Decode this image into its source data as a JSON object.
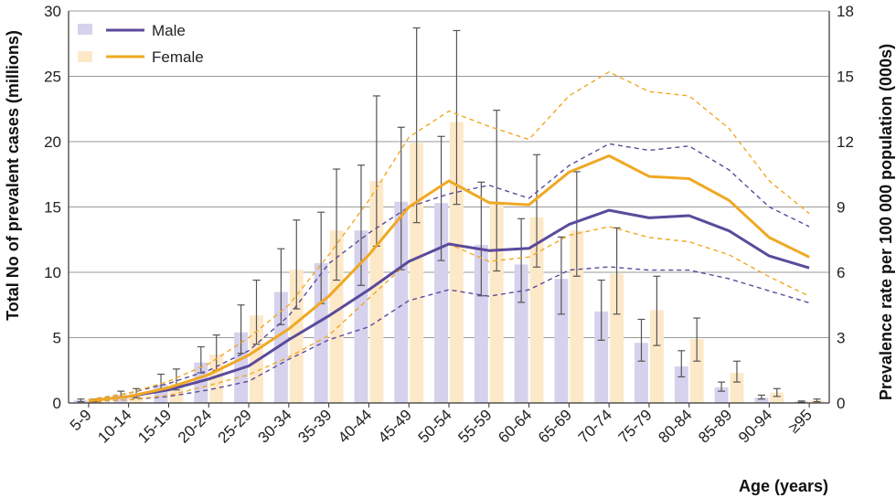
{
  "chart_data": {
    "type": "bar+line",
    "categories": [
      "5-9",
      "10-14",
      "15-19",
      "20-24",
      "25-29",
      "30-34",
      "35-39",
      "40-44",
      "45-49",
      "50-54",
      "55-59",
      "60-64",
      "65-69",
      "70-74",
      "75-79",
      "80-84",
      "85-89",
      "90-94",
      "≥95"
    ],
    "ylabel_left": "Total No of prevalent cases (millions)",
    "ylabel_right": "Prevalence rate per 100 000 population (000s)",
    "xlabel": "Age (years)",
    "ylim_left": [
      0,
      30
    ],
    "ylim_right": [
      0,
      18
    ],
    "yticks_left": [
      "0",
      "5",
      "10",
      "15",
      "20",
      "25",
      "30"
    ],
    "yticks_right": [
      "0",
      "3",
      "6",
      "9",
      "12",
      "15",
      "18"
    ],
    "grid": true,
    "legend": {
      "position": "top-left",
      "entries": [
        {
          "name": "Male",
          "color": "#5b4a9b"
        },
        {
          "name": "Female",
          "color": "#f0a823"
        }
      ]
    },
    "colors": {
      "male_bar": "#d6d1ec",
      "female_bar": "#fde9c8",
      "male_line": "#5b4a9b",
      "female_line": "#f0a823",
      "error_bar": "#555555"
    },
    "bars": {
      "male": {
        "values": [
          0.2,
          0.6,
          1.4,
          3.1,
          5.4,
          8.5,
          10.7,
          13.2,
          15.4,
          15.3,
          12.1,
          10.6,
          9.5,
          7.0,
          4.6,
          2.8,
          1.2,
          0.4,
          0.1
        ],
        "lower": [
          0.1,
          0.4,
          1.0,
          2.3,
          3.8,
          6.0,
          7.6,
          9.0,
          10.2,
          10.9,
          8.2,
          7.7,
          6.8,
          4.8,
          3.2,
          2.0,
          0.9,
          0.3,
          0.05
        ],
        "upper": [
          0.3,
          0.9,
          2.2,
          4.3,
          7.5,
          11.8,
          14.6,
          18.2,
          21.1,
          20.4,
          16.9,
          14.1,
          12.7,
          9.4,
          6.4,
          4.0,
          1.6,
          0.6,
          0.15
        ]
      },
      "female": {
        "values": [
          0.2,
          0.7,
          1.5,
          3.7,
          6.7,
          10.2,
          13.2,
          17.0,
          19.9,
          21.5,
          15.4,
          14.2,
          13.2,
          9.9,
          7.1,
          4.9,
          2.3,
          0.8,
          0.2
        ],
        "lower": [
          0.1,
          0.4,
          1.0,
          2.5,
          4.5,
          7.2,
          9.4,
          12.0,
          13.8,
          15.2,
          10.1,
          10.4,
          9.7,
          6.8,
          4.4,
          3.2,
          1.6,
          0.5,
          0.1
        ],
        "upper": [
          0.3,
          1.1,
          2.6,
          5.2,
          9.4,
          14.0,
          17.9,
          23.5,
          28.7,
          28.5,
          22.4,
          19.0,
          17.7,
          13.4,
          9.7,
          6.5,
          3.2,
          1.1,
          0.3
        ]
      }
    },
    "lines": {
      "male": {
        "values": [
          0.1,
          0.3,
          0.6,
          1.1,
          1.7,
          2.9,
          4.0,
          5.2,
          6.5,
          7.3,
          7.0,
          7.1,
          8.2,
          8.85,
          8.5,
          8.6,
          7.9,
          6.75,
          6.2
        ],
        "lower": [
          0.05,
          0.15,
          0.3,
          0.6,
          1.0,
          2.0,
          2.9,
          3.5,
          4.7,
          5.2,
          4.9,
          5.2,
          6.1,
          6.25,
          6.1,
          6.1,
          5.7,
          5.15,
          4.6
        ],
        "upper": [
          0.15,
          0.45,
          0.9,
          1.5,
          2.4,
          4.0,
          6.4,
          7.8,
          9.0,
          9.6,
          10.0,
          9.4,
          10.9,
          11.9,
          11.6,
          11.8,
          10.7,
          9.0,
          8.1
        ]
      },
      "female": {
        "values": [
          0.1,
          0.3,
          0.7,
          1.3,
          2.2,
          3.4,
          4.9,
          6.8,
          9.0,
          10.2,
          9.2,
          9.1,
          10.6,
          11.35,
          10.4,
          10.3,
          9.3,
          7.6,
          6.7
        ]
      },
      "female_band": {
        "lower": [
          0.05,
          0.15,
          0.35,
          0.8,
          1.3,
          2.1,
          3.1,
          4.8,
          6.5,
          7.3,
          6.5,
          6.7,
          7.7,
          8.1,
          7.6,
          7.4,
          6.8,
          5.8,
          4.9
        ],
        "upper": [
          0.15,
          0.45,
          1.0,
          1.8,
          3.0,
          4.5,
          6.8,
          9.3,
          12.2,
          13.4,
          12.7,
          12.1,
          14.1,
          15.2,
          14.3,
          14.1,
          12.6,
          10.2,
          8.7
        ]
      }
    }
  }
}
